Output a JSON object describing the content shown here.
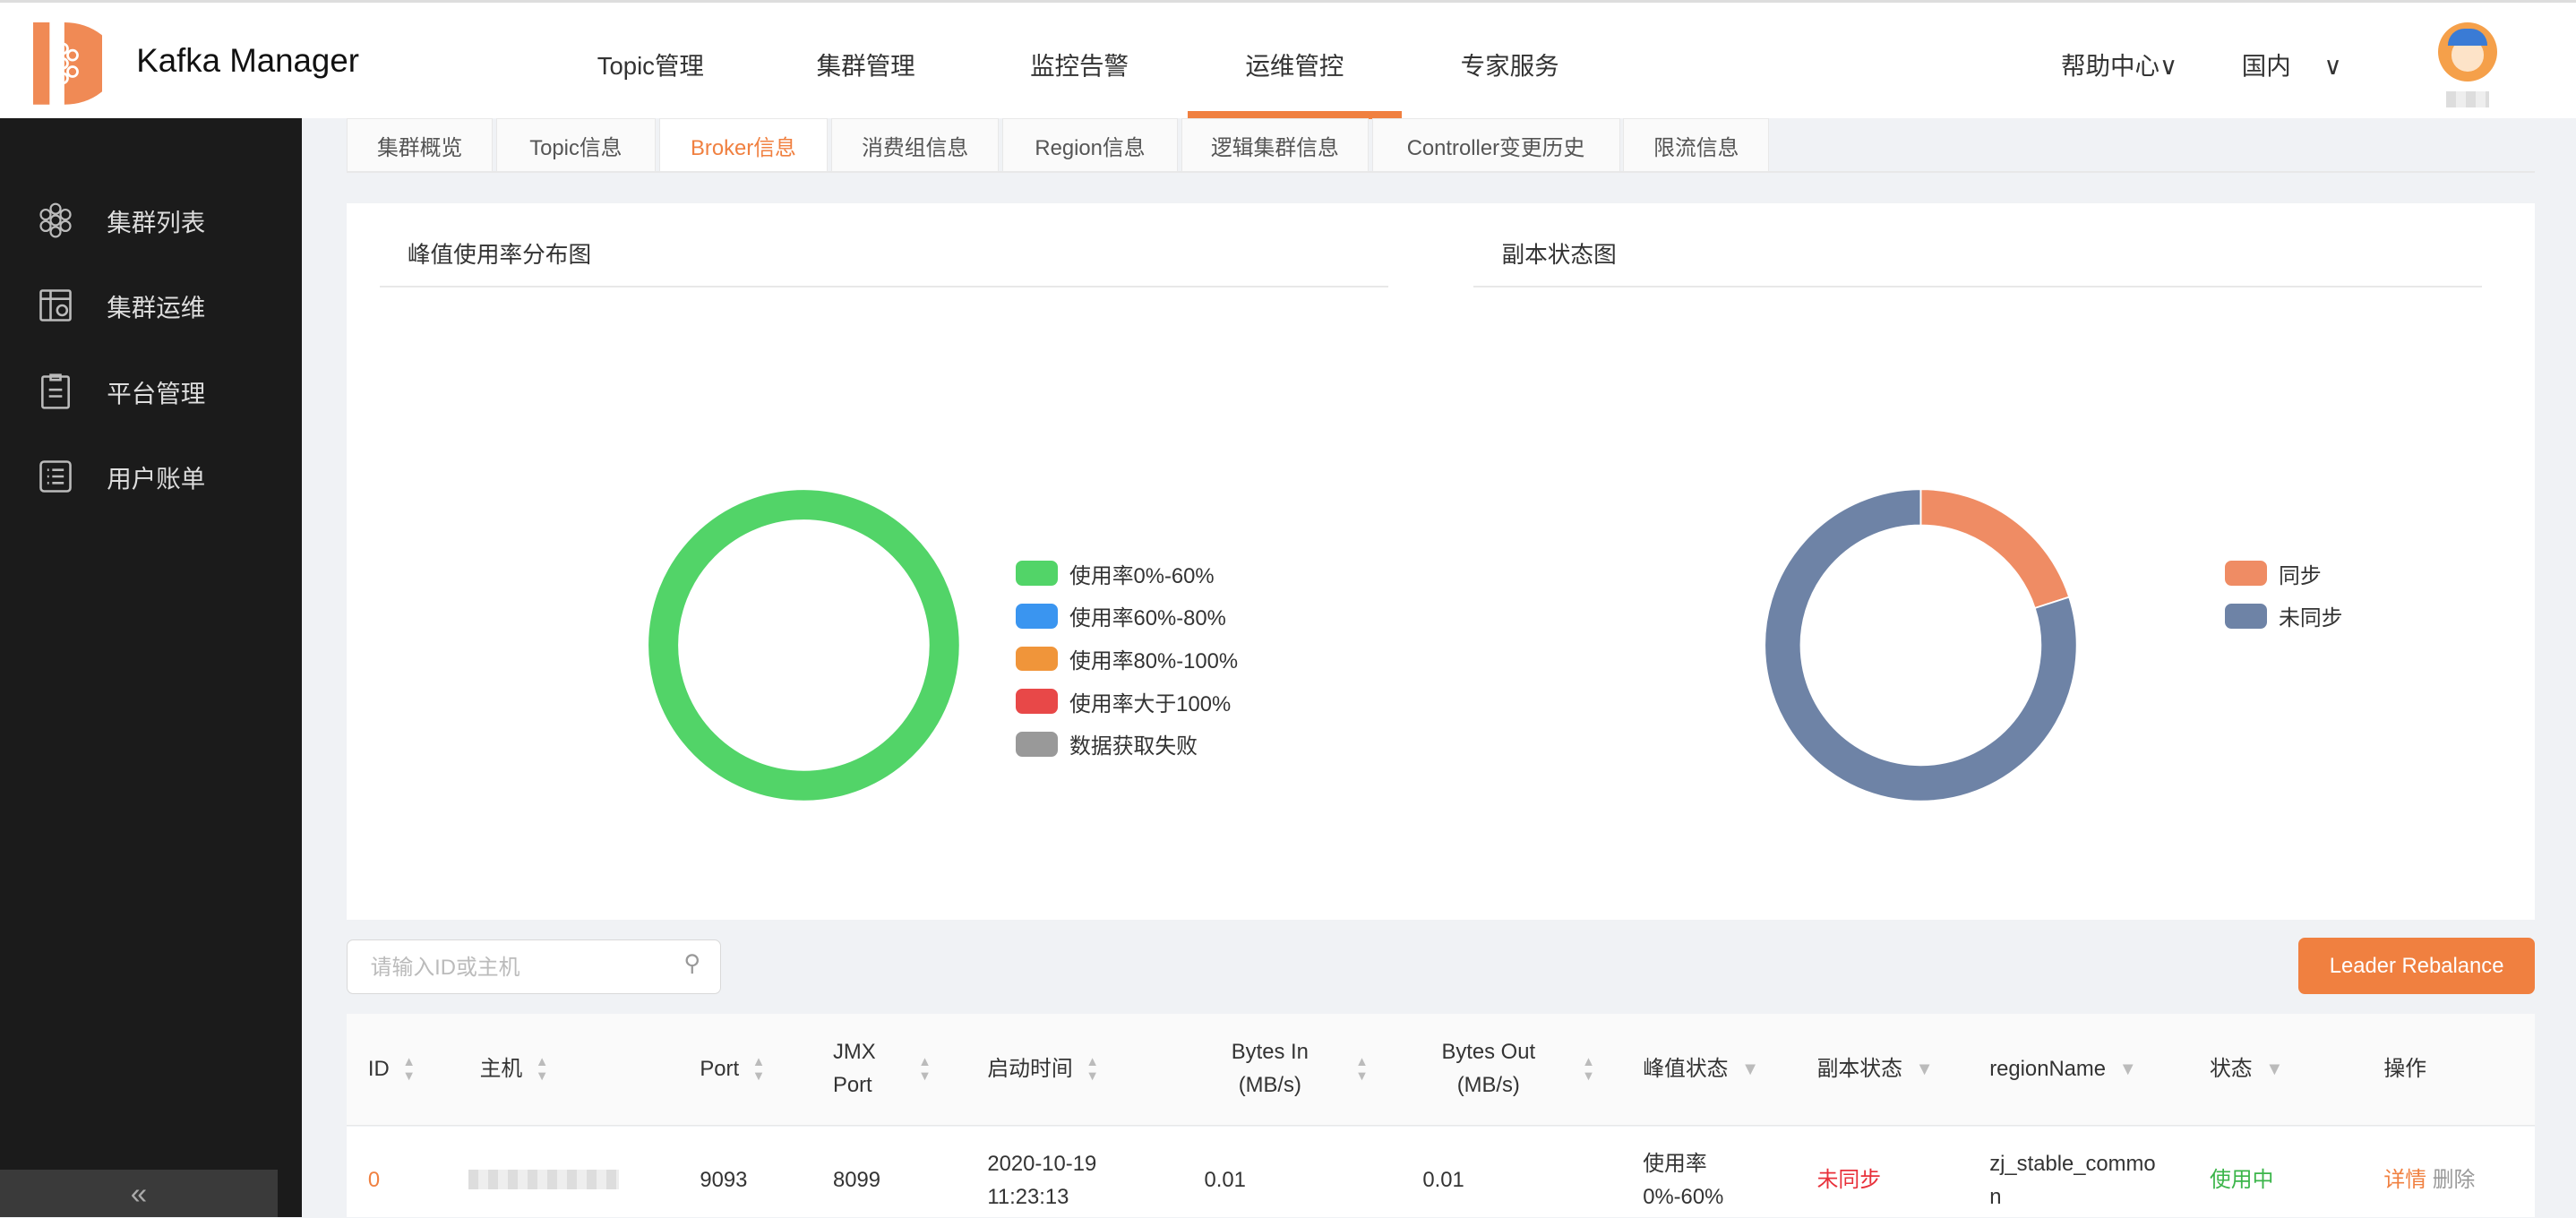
{
  "app": {
    "title": "Kafka Manager"
  },
  "topnav": {
    "items": [
      "Topic管理",
      "集群管理",
      "监控告警",
      "运维管控",
      "专家服务"
    ],
    "active": "运维管控",
    "help": "帮助中心",
    "region": "国内"
  },
  "sidebar": {
    "items": [
      "集群列表",
      "集群运维",
      "平台管理",
      "用户账单"
    ],
    "collapse": "«"
  },
  "tabs": {
    "items": [
      "集群概览",
      "Topic信息",
      "Broker信息",
      "消费组信息",
      "Region信息",
      "逻辑集群信息",
      "Controller变更历史",
      "限流信息"
    ],
    "active": "Broker信息"
  },
  "charts": {
    "peak": {
      "title": "峰值使用率分布图",
      "legend": [
        "使用率0%-60%",
        "使用率60%-80%",
        "使用率80%-100%",
        "使用率大于100%",
        "数据获取失败"
      ]
    },
    "replica": {
      "title": "副本状态图",
      "legend": [
        "同步",
        "未同步"
      ]
    }
  },
  "chart_data": [
    {
      "type": "pie",
      "title": "峰值使用率分布图",
      "categories": [
        "使用率0%-60%",
        "使用率60%-80%",
        "使用率80%-100%",
        "使用率大于100%",
        "数据获取失败"
      ],
      "values": [
        100,
        0,
        0,
        0,
        0
      ],
      "colors": [
        "#52d468",
        "#3a95f0",
        "#f0953a",
        "#e84848",
        "#999999"
      ],
      "donut": true,
      "legend": "right"
    },
    {
      "type": "pie",
      "title": "副本状态图",
      "categories": [
        "同步",
        "未同步"
      ],
      "values": [
        20,
        80
      ],
      "colors": [
        "#ef8c64",
        "#6e83a6"
      ],
      "donut": true,
      "legend": "right"
    }
  ],
  "toolbar": {
    "search_placeholder": "请输入ID或主机",
    "rebalance": "Leader Rebalance"
  },
  "table": {
    "headers": {
      "id": "ID",
      "host": "主机",
      "port": "Port",
      "jmx1": "JMX",
      "jmx2": "Port",
      "start": "启动时间",
      "bin1": "Bytes In",
      "bin2": "(MB/s)",
      "bout1": "Bytes Out",
      "bout2": "(MB/s)",
      "peak": "峰值状态",
      "replica": "副本状态",
      "region": "regionName",
      "status": "状态",
      "ops": "操作"
    },
    "rows": [
      {
        "id": "0",
        "port": "9093",
        "jmx": "8099",
        "start1": "2020-10-19",
        "start2": "11:23:13",
        "bytes_in": "0.01",
        "bytes_out": "0.01",
        "peak1": "使用率",
        "peak2": "0%-60%",
        "replica": "未同步",
        "region1": "zj_stable_commo",
        "region2": "n",
        "status": "使用中",
        "detail": "详情",
        "delete": "删除"
      }
    ]
  }
}
